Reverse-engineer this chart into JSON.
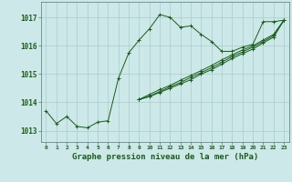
{
  "title": "Graphe pression niveau de la mer (hPa)",
  "bg_color": "#cce8e8",
  "grid_color": "#aacccc",
  "line_color": "#1a5c1a",
  "xlim": [
    -0.5,
    23.5
  ],
  "ylim": [
    1012.6,
    1017.55
  ],
  "yticks": [
    1013,
    1014,
    1015,
    1016,
    1017
  ],
  "xticks": [
    0,
    1,
    2,
    3,
    4,
    5,
    6,
    7,
    8,
    9,
    10,
    11,
    12,
    13,
    14,
    15,
    16,
    17,
    18,
    19,
    20,
    21,
    22,
    23
  ],
  "series": [
    {
      "x": [
        0,
        1,
        2,
        3,
        4,
        5,
        6,
        7,
        8,
        9,
        10,
        11,
        12,
        13,
        14,
        15,
        16,
        17,
        18,
        19,
        20,
        21,
        22,
        23
      ],
      "y": [
        1013.7,
        1013.25,
        1013.5,
        1013.15,
        1013.1,
        1013.3,
        1013.35,
        1014.85,
        1015.75,
        1016.2,
        1016.6,
        1017.1,
        1017.0,
        1016.65,
        1016.7,
        1016.4,
        1016.15,
        1015.8,
        1015.8,
        1015.95,
        1016.05,
        1016.85,
        1016.85,
        1016.9
      ]
    },
    {
      "x": [
        9,
        10,
        11,
        12,
        13,
        14,
        15,
        16,
        17,
        18,
        19,
        20,
        21,
        22,
        23
      ],
      "y": [
        1014.1,
        1014.2,
        1014.35,
        1014.5,
        1014.65,
        1014.8,
        1015.0,
        1015.15,
        1015.35,
        1015.55,
        1015.72,
        1015.88,
        1016.1,
        1016.3,
        1016.9
      ]
    },
    {
      "x": [
        9,
        10,
        11,
        12,
        13,
        14,
        15,
        16,
        17,
        18,
        19,
        20,
        21,
        22,
        23
      ],
      "y": [
        1014.1,
        1014.22,
        1014.38,
        1014.55,
        1014.7,
        1014.88,
        1015.05,
        1015.22,
        1015.42,
        1015.62,
        1015.78,
        1015.95,
        1016.15,
        1016.35,
        1016.9
      ]
    },
    {
      "x": [
        9,
        10,
        11,
        12,
        13,
        14,
        15,
        16,
        17,
        18,
        19,
        20,
        21,
        22,
        23
      ],
      "y": [
        1014.1,
        1014.28,
        1014.45,
        1014.6,
        1014.78,
        1014.95,
        1015.12,
        1015.3,
        1015.5,
        1015.68,
        1015.85,
        1016.0,
        1016.2,
        1016.4,
        1016.9
      ]
    }
  ]
}
